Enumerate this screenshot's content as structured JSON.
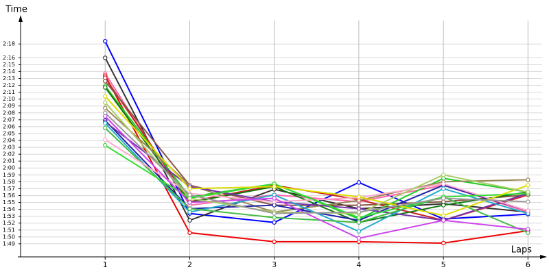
{
  "chart_data": {
    "type": "line",
    "y_label": "Time",
    "x_label": "Laps",
    "x": [
      1,
      2,
      3,
      4,
      5,
      6
    ],
    "xlim": [
      0,
      6.2
    ],
    "xticks": [
      1,
      2,
      3,
      4,
      5,
      6
    ],
    "ylim": [
      107.1,
      141.4
    ],
    "yticks": [
      {
        "value": 109,
        "label": "1:49"
      },
      {
        "value": 110,
        "label": "1:50"
      },
      {
        "value": 111,
        "label": "1:51"
      },
      {
        "value": 112,
        "label": "1:52"
      },
      {
        "value": 113,
        "label": "1:53"
      },
      {
        "value": 114,
        "label": "1:54"
      },
      {
        "value": 115,
        "label": "1:55"
      },
      {
        "value": 116,
        "label": "1:56"
      },
      {
        "value": 117,
        "label": "1:57"
      },
      {
        "value": 118,
        "label": "1:58"
      },
      {
        "value": 119,
        "label": "1:59"
      },
      {
        "value": 120,
        "label": "2:00"
      },
      {
        "value": 121,
        "label": "2:01"
      },
      {
        "value": 122,
        "label": "2:02"
      },
      {
        "value": 123,
        "label": "2:03"
      },
      {
        "value": 124,
        "label": "2:04"
      },
      {
        "value": 125,
        "label": "2:05"
      },
      {
        "value": 126,
        "label": "2:06"
      },
      {
        "value": 127,
        "label": "2:07"
      },
      {
        "value": 128,
        "label": "2:08"
      },
      {
        "value": 129,
        "label": "2:09"
      },
      {
        "value": 130,
        "label": "2:10"
      },
      {
        "value": 131,
        "label": "2:11"
      },
      {
        "value": 132,
        "label": "2:12"
      },
      {
        "value": 133,
        "label": "2:13"
      },
      {
        "value": 134,
        "label": "2:14"
      },
      {
        "value": 135,
        "label": "2:15"
      },
      {
        "value": 136,
        "label": "2:16"
      },
      {
        "value": 138,
        "label": "2:18"
      }
    ],
    "grid": true,
    "series": [
      {
        "color": "#0000ff",
        "values": [
          138.4,
          113.4,
          112.1,
          117.9,
          112.6,
          113.3
        ]
      },
      {
        "color": "#333333",
        "values": [
          136.0,
          112.4,
          116.9,
          114.1,
          114.8,
          113.6
        ]
      },
      {
        "color": "#ff66aa",
        "values": [
          133.7,
          114.6,
          116.1,
          115.1,
          117.5,
          113.6
        ]
      },
      {
        "color": "#ee0000",
        "values": [
          133.4,
          110.6,
          109.3,
          109.3,
          109.1,
          110.9
        ]
      },
      {
        "color": "#cc2222",
        "values": [
          133.1,
          115.1,
          117.5,
          115.4,
          112.4,
          116.1
        ]
      },
      {
        "color": "#885544",
        "values": [
          132.6,
          117.5,
          114.6,
          114.6,
          115.1,
          116.1
        ]
      },
      {
        "color": "#22cc22",
        "values": [
          131.9,
          115.8,
          117.7,
          112.6,
          118.5,
          116.5
        ]
      },
      {
        "color": "#117711",
        "values": [
          131.7,
          115.0,
          117.3,
          112.1,
          114.6,
          116.5
        ]
      },
      {
        "color": "#998855",
        "values": [
          128.7,
          117.5,
          113.6,
          115.3,
          118.0,
          118.3
        ]
      },
      {
        "color": "#2222aa",
        "values": [
          126.9,
          114.1,
          114.6,
          112.4,
          117.5,
          113.8
        ]
      },
      {
        "color": "#7733aa",
        "values": [
          126.7,
          117.3,
          115.1,
          114.1,
          112.4,
          116.3
        ]
      },
      {
        "color": "#22aacc",
        "values": [
          126.5,
          113.6,
          116.1,
          110.8,
          117.0,
          113.4
        ]
      },
      {
        "color": "#44bb44",
        "values": [
          125.8,
          114.1,
          112.8,
          112.1,
          115.8,
          110.6
        ]
      },
      {
        "color": "#ffaacc",
        "values": [
          124.1,
          116.3,
          115.1,
          115.7,
          117.7,
          113.8
        ]
      },
      {
        "color": "#33dd33",
        "values": [
          123.3,
          115.6,
          117.7,
          112.8,
          115.8,
          116.3
        ]
      },
      {
        "color": "#cc44ee",
        "values": [
          127.5,
          115.0,
          115.6,
          109.8,
          112.4,
          111.1
        ]
      },
      {
        "color": "#dddd00",
        "values": [
          130.4,
          117.0,
          117.3,
          115.8,
          113.1,
          117.5
        ]
      },
      {
        "color": "#aacc66",
        "values": [
          129.5,
          115.6,
          113.6,
          113.4,
          119.0,
          116.5
        ]
      },
      {
        "color": "#999999",
        "values": [
          128.0,
          116.1,
          113.4,
          113.6,
          115.6,
          115.1
        ]
      }
    ]
  }
}
